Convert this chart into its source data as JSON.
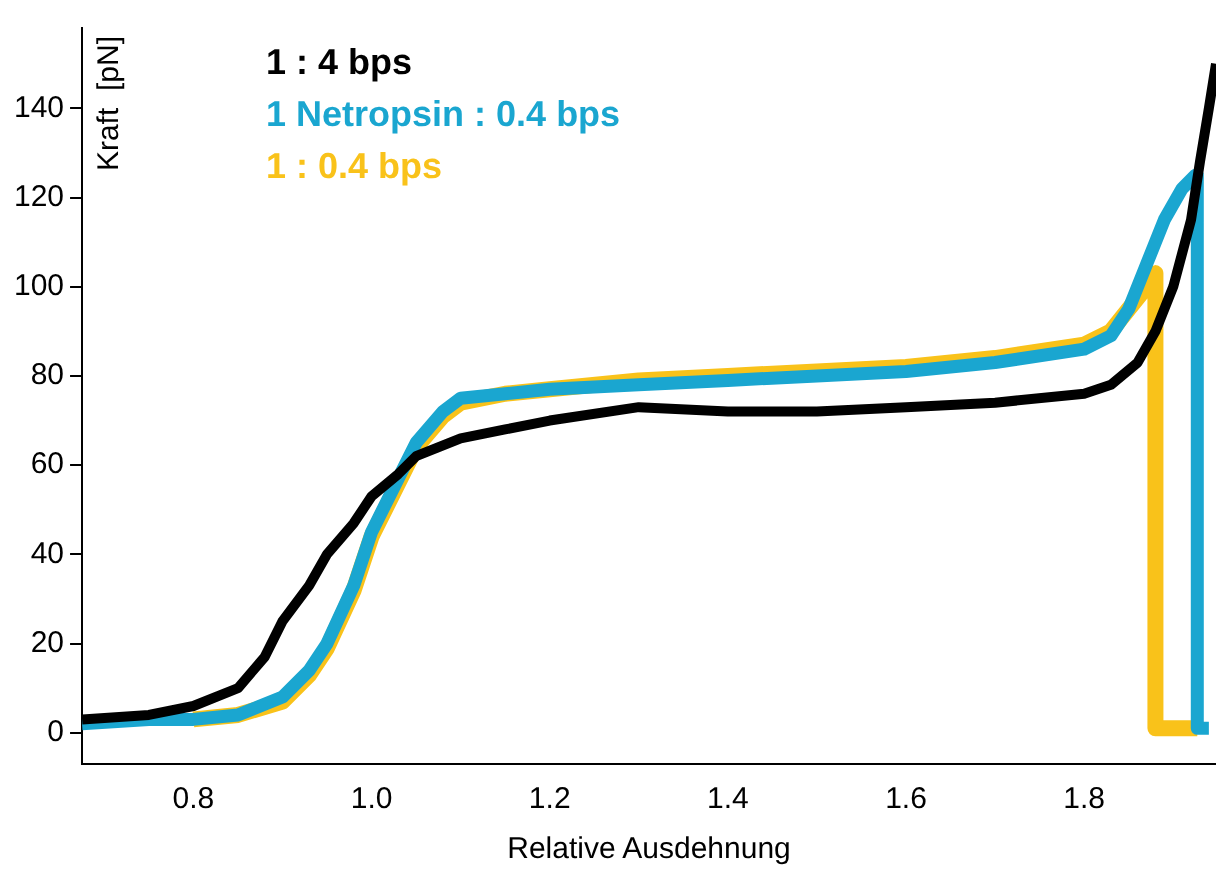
{
  "chart_data": {
    "type": "line",
    "xlabel": "Relative Ausdehnung",
    "ylabel": "Kraft  [pN]",
    "xlim": [
      0.675,
      1.948
    ],
    "ylim": [
      -7,
      158
    ],
    "xticks": [
      {
        "value": 0.8,
        "label": "0.8"
      },
      {
        "value": 1,
        "label": "1.0"
      },
      {
        "value": 1.2,
        "label": "1.2"
      },
      {
        "value": 1.4,
        "label": "1.4"
      },
      {
        "value": 1.6,
        "label": "1.6"
      },
      {
        "value": 1.8,
        "label": "1.8"
      }
    ],
    "yticks": [
      0,
      20,
      40,
      60,
      80,
      100,
      120,
      140
    ],
    "grid": false,
    "legend": "top left",
    "marker": "none",
    "line_style": "solid",
    "series": [
      {
        "name": "1 : 4 bps",
        "color": "#000000",
        "x": [
          0.675,
          0.75,
          0.8,
          0.85,
          0.88,
          0.9,
          0.93,
          0.95,
          0.98,
          1.0,
          1.03,
          1.05,
          1.1,
          1.15,
          1.2,
          1.3,
          1.4,
          1.5,
          1.6,
          1.7,
          1.8,
          1.83,
          1.86,
          1.88,
          1.9,
          1.92,
          1.93,
          1.94,
          1.948
        ],
        "values": [
          3,
          4,
          6,
          10,
          17,
          25,
          33,
          40,
          47,
          53,
          58,
          62,
          66,
          68,
          70,
          73,
          72,
          72,
          73,
          74,
          76,
          78,
          83,
          90,
          100,
          115,
          128,
          140,
          150
        ]
      },
      {
        "name": "1 Netropsin : 0.4 bps",
        "color": "#1aa6d0",
        "x": [
          0.675,
          0.75,
          0.8,
          0.85,
          0.9,
          0.93,
          0.95,
          0.98,
          1.0,
          1.03,
          1.05,
          1.08,
          1.1,
          1.15,
          1.2,
          1.3,
          1.4,
          1.5,
          1.6,
          1.7,
          1.8,
          1.83,
          1.85,
          1.87,
          1.89,
          1.91,
          1.925,
          1.927,
          1.927,
          1.94
        ],
        "values": [
          2,
          3,
          3,
          4,
          8,
          14,
          20,
          33,
          45,
          57,
          65,
          72,
          75,
          76,
          77,
          78,
          79,
          80,
          81,
          83,
          86,
          89,
          95,
          105,
          115,
          122,
          125,
          125,
          1,
          1
        ]
      },
      {
        "name": "1 : 0.4 bps",
        "color": "#f9c21a",
        "x": [
          0.8,
          0.85,
          0.9,
          0.93,
          0.95,
          0.98,
          1.0,
          1.03,
          1.05,
          1.08,
          1.1,
          1.15,
          1.2,
          1.3,
          1.4,
          1.5,
          1.6,
          1.7,
          1.8,
          1.83,
          1.85,
          1.87,
          1.88,
          1.88,
          1.927
        ],
        "values": [
          3,
          4,
          7,
          13,
          19,
          32,
          44,
          56,
          64,
          71,
          74,
          76,
          77,
          79,
          80,
          81,
          82,
          84,
          87,
          90,
          95,
          100,
          103,
          1,
          1
        ]
      }
    ]
  }
}
